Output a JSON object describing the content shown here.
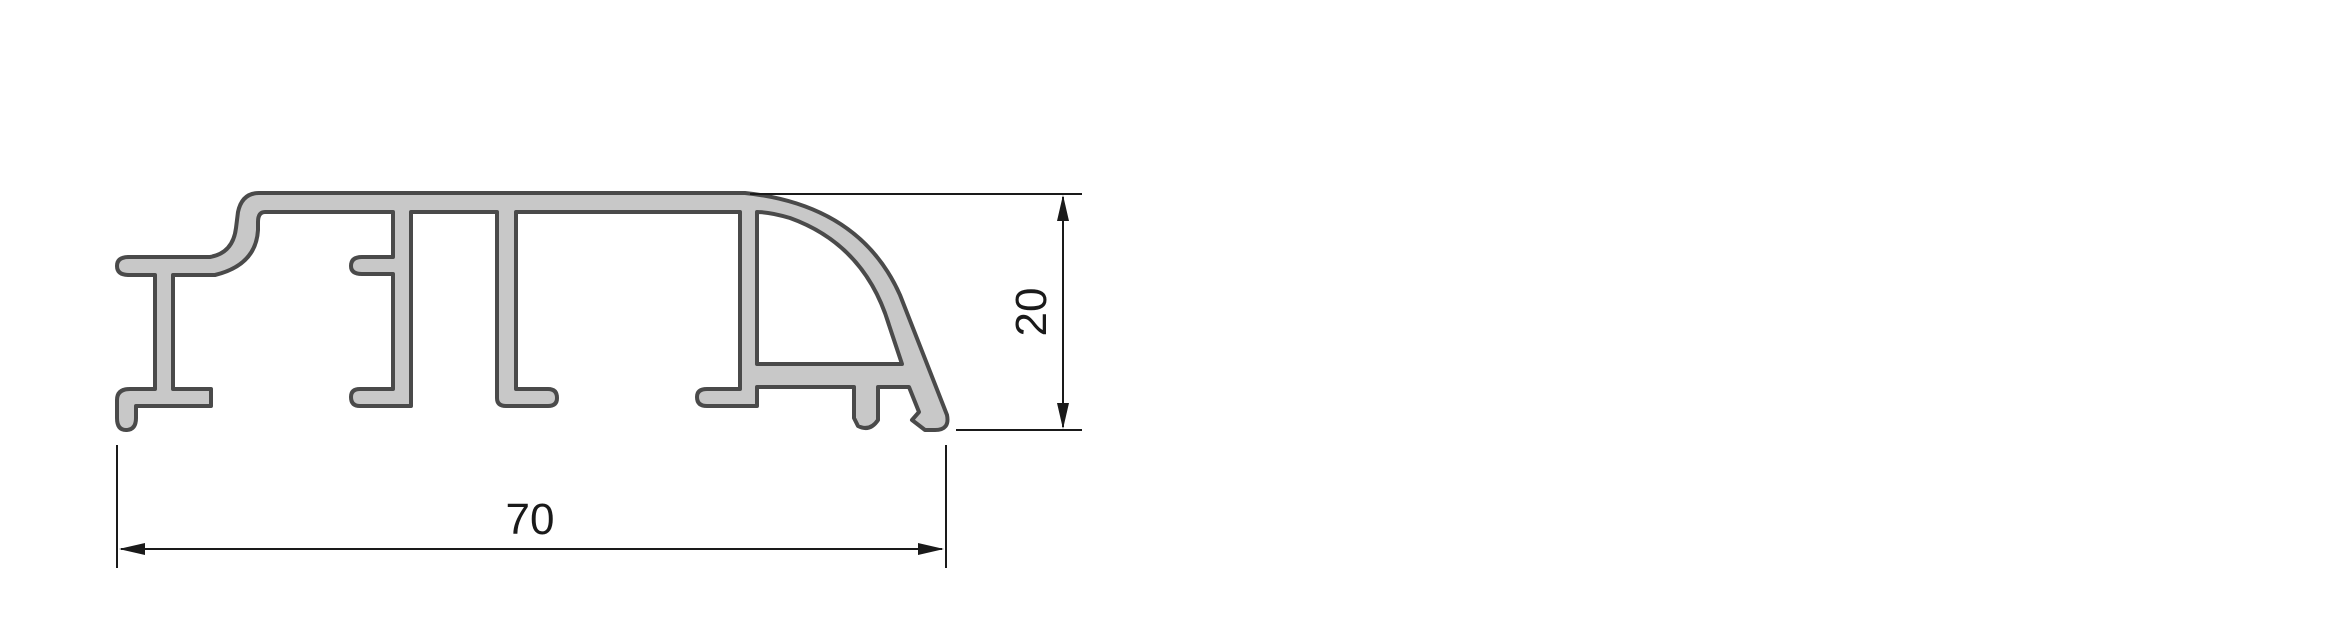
{
  "drawing": {
    "dimensions": {
      "width_label": "70",
      "height_label": "20"
    },
    "colors": {
      "profile_fill": "#c8c8c8",
      "profile_stroke": "#4a4a4a",
      "dimension_line": "#1a1a1a",
      "background": "#ffffff"
    }
  }
}
